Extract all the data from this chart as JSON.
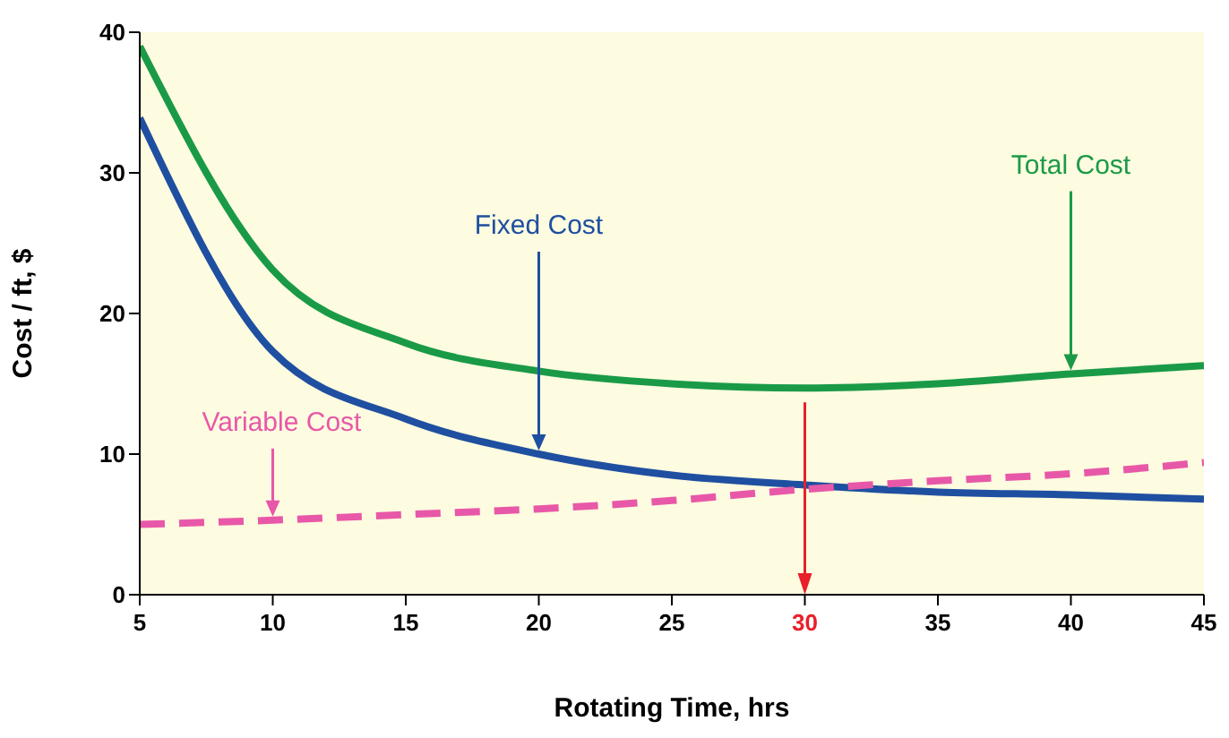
{
  "chart_data": {
    "type": "line",
    "xlabel": "Rotating Time, hrs",
    "ylabel": "Cost / ft, $",
    "x": [
      5,
      10,
      15,
      20,
      25,
      30,
      35,
      40,
      45
    ],
    "series": [
      {
        "name": "Total Cost",
        "color": "#1a9a47",
        "values": [
          39,
          23.1,
          17.9,
          15.9,
          15,
          14.7,
          15,
          15.7,
          16.3
        ]
      },
      {
        "name": "Fixed Cost",
        "color": "#1f4fa0",
        "values": [
          33.9,
          17.3,
          12.5,
          10,
          8.5,
          7.8,
          7.3,
          7.1,
          6.8
        ]
      },
      {
        "name": "Variable Cost",
        "color": "#e858a8",
        "line_style": "dashed",
        "values": [
          5,
          5.3,
          5.7,
          6.1,
          6.7,
          7.5,
          8.1,
          8.6,
          9.4
        ]
      }
    ],
    "ref_lines": [
      {
        "axis": "x",
        "value": 30,
        "color": "#e8202a"
      }
    ],
    "xlim": [
      5,
      45
    ],
    "xticks": [
      5,
      10,
      15,
      20,
      25,
      30,
      35,
      40,
      45
    ],
    "ylim": [
      0,
      40
    ],
    "yticks": [
      0,
      10,
      20,
      30,
      40
    ],
    "grid": false,
    "legend": false,
    "marker": "none"
  }
}
